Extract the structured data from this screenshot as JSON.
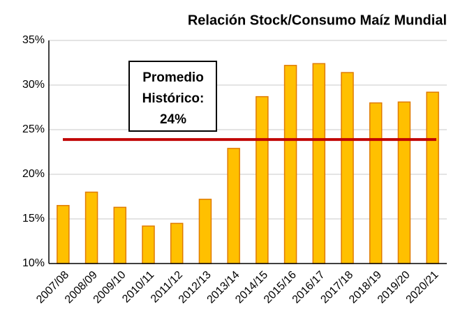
{
  "chart_data": {
    "type": "bar",
    "title": "Relación Stock/Consumo Maíz Mundial",
    "categories": [
      "2007/08",
      "2008/09",
      "2009/10",
      "2010/11",
      "2011/12",
      "2012/13",
      "2013/14",
      "2014/15",
      "2015/16",
      "2016/17",
      "2017/18",
      "2018/19",
      "2019/20",
      "2020/21"
    ],
    "values": [
      16.5,
      18.0,
      16.3,
      14.2,
      14.5,
      17.2,
      22.9,
      28.7,
      32.2,
      32.4,
      31.4,
      28.0,
      28.1,
      29.2
    ],
    "color": "#ffc000",
    "edge_color": "#e07b00",
    "ylim": [
      10,
      35
    ],
    "yticks": [
      {
        "value": 10,
        "label": "10%"
      },
      {
        "value": 15,
        "label": "15%"
      },
      {
        "value": 20,
        "label": "20%"
      },
      {
        "value": 25,
        "label": "25%"
      },
      {
        "value": 30,
        "label": "30%"
      },
      {
        "value": 35,
        "label": "35%"
      }
    ],
    "grid": true,
    "average_line": {
      "value": 23.9,
      "color": "#c00000",
      "label_lines": [
        "Promedio",
        "Histórico:",
        "24%"
      ]
    }
  }
}
